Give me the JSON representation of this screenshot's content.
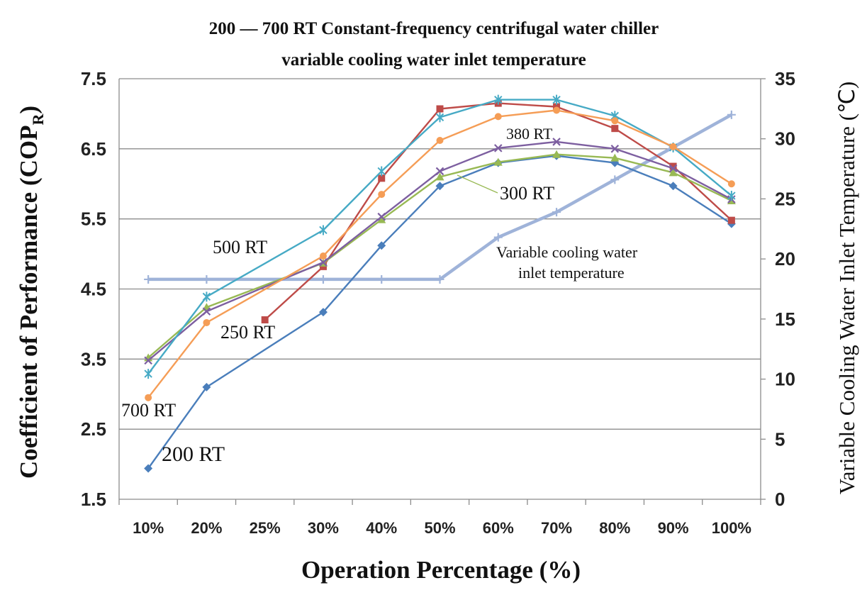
{
  "chart_data": {
    "type": "line",
    "title_line1": "200 — 700 RT Constant-frequency centrifugal water chiller",
    "title_line2": "variable cooling water inlet temperature",
    "xlabel": "Operation Percentage (%)",
    "ylabel_left_main": "Coefficient of Performance (COP",
    "ylabel_left_sub": "R",
    "ylabel_left_end": ")",
    "ylabel_right": "Variable Cooling Water Inlet Temperature  (℃)",
    "categories": [
      "10%",
      "20%",
      "25%",
      "30%",
      "40%",
      "50%",
      "60%",
      "70%",
      "80%",
      "90%",
      "100%"
    ],
    "ylim_left": [
      1.5,
      7.5
    ],
    "yticks_left": [
      "1.5",
      "2.5",
      "3.5",
      "4.5",
      "5.5",
      "6.5",
      "7.5"
    ],
    "ylim_right": [
      0,
      35
    ],
    "yticks_right": [
      "0",
      "5",
      "10",
      "15",
      "20",
      "25",
      "30",
      "35"
    ],
    "series": [
      {
        "name": "200 RT",
        "color": "#4a7ebb",
        "marker": "diamond",
        "axis": "left",
        "values": [
          1.94,
          3.1,
          null,
          4.17,
          5.12,
          5.97,
          6.3,
          6.4,
          6.3,
          5.97,
          5.43
        ]
      },
      {
        "name": "250 RT",
        "color": "#be4b48",
        "marker": "square",
        "axis": "left",
        "values": [
          null,
          null,
          4.06,
          4.82,
          6.08,
          7.07,
          7.15,
          7.1,
          6.79,
          6.25,
          5.48
        ]
      },
      {
        "name": "300 RT",
        "color": "#98b954",
        "marker": "triangle",
        "axis": "left",
        "values": [
          3.52,
          4.24,
          null,
          4.87,
          5.49,
          6.1,
          6.31,
          6.42,
          6.37,
          6.16,
          5.76
        ]
      },
      {
        "name": "380 RT",
        "color": "#7d5fa0",
        "marker": "x",
        "axis": "left",
        "values": [
          3.48,
          4.18,
          null,
          4.88,
          5.53,
          6.18,
          6.51,
          6.6,
          6.5,
          6.22,
          5.78
        ]
      },
      {
        "name": "500 RT",
        "color": "#46aac5",
        "marker": "star",
        "axis": "left",
        "values": [
          3.29,
          4.39,
          null,
          5.34,
          6.18,
          6.95,
          7.2,
          7.2,
          6.97,
          6.52,
          5.83
        ]
      },
      {
        "name": "700 RT",
        "color": "#f59d56",
        "marker": "circle",
        "axis": "left",
        "values": [
          2.95,
          4.02,
          null,
          4.97,
          5.85,
          6.62,
          6.96,
          7.05,
          6.9,
          6.53,
          6.0
        ]
      },
      {
        "name": "Variable cooling water inlet temperature",
        "color": "#9fb3d9",
        "marker": "plus",
        "axis": "right",
        "values": [
          18.3,
          18.3,
          null,
          18.3,
          18.3,
          18.3,
          21.8,
          23.9,
          26.6,
          29.3,
          32.0
        ]
      }
    ],
    "annotations": [
      "500 RT",
      "250 RT",
      "700 RT",
      "200 RT",
      "380 RT",
      "300 RT",
      "Variable cooling water",
      "inlet temperature"
    ],
    "grid": true
  }
}
